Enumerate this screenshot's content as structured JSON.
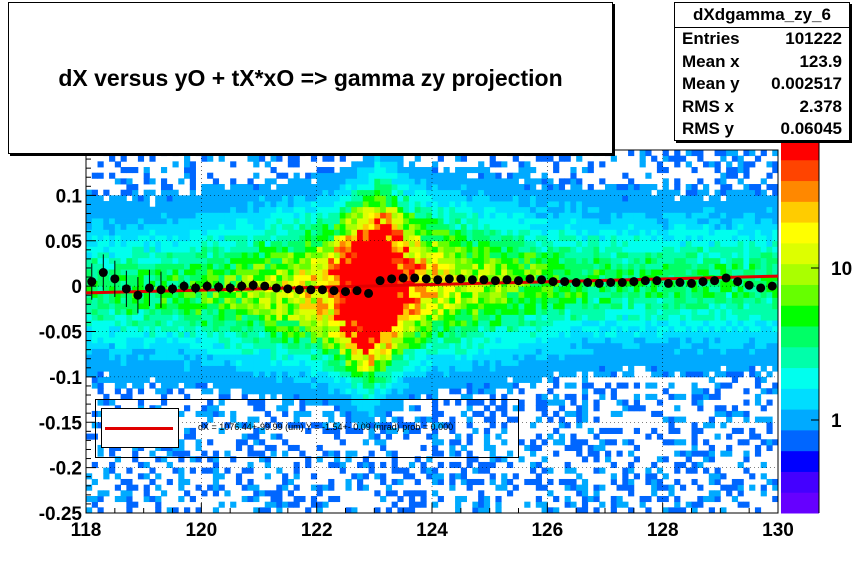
{
  "title": "dX  versus  yO + tX*xO =>  gamma zy projection",
  "stats": {
    "name": "dXdgamma_zy_6",
    "rows": [
      {
        "label": "Entries",
        "value": "101222"
      },
      {
        "label": "Mean x",
        "value": "123.9"
      },
      {
        "label": "Mean y",
        "value": "0.002517"
      },
      {
        "label": "RMS x",
        "value": "2.378"
      },
      {
        "label": "RMS y",
        "value": "0.06045"
      }
    ]
  },
  "fit_text": "dX = 1076.44+-99.99 (um) Y = -1.54+- 0.09 (mrad) prob = 0.000",
  "colors": {
    "fit_line": "#e00000",
    "points": "#000000",
    "palette": [
      "#6600ff",
      "#4400ff",
      "#0000ff",
      "#0066ff",
      "#00aaff",
      "#00ddff",
      "#00ffee",
      "#00ffaa",
      "#00ff66",
      "#00ff00",
      "#66ff00",
      "#aaff00",
      "#ddff00",
      "#ffff00",
      "#ffcc00",
      "#ff8800",
      "#ff4400",
      "#ff0000"
    ]
  },
  "chart_data": {
    "type": "heatmap",
    "title": "dX  versus  yO + tX*xO =>  gamma zy projection",
    "xlabel": "",
    "ylabel": "",
    "xlim": [
      118,
      130
    ],
    "ylim": [
      -0.25,
      0.15
    ],
    "x_ticks": [
      "118",
      "120",
      "122",
      "124",
      "126",
      "128",
      "130"
    ],
    "y_ticks": [
      "0.1",
      "0.05",
      "0",
      "-0.05",
      "-0.1",
      "-0.15",
      "-0.2",
      "-0.25"
    ],
    "z_scale": "log",
    "z_labels": [
      "1",
      "10"
    ],
    "grid": true,
    "profile_points": {
      "x": [
        118.1,
        118.3,
        118.5,
        118.7,
        118.9,
        119.1,
        119.3,
        119.5,
        119.7,
        119.9,
        120.1,
        120.3,
        120.5,
        120.7,
        120.9,
        121.1,
        121.3,
        121.5,
        121.7,
        121.9,
        122.1,
        122.3,
        122.5,
        122.7,
        122.9,
        123.1,
        123.3,
        123.5,
        123.7,
        123.9,
        124.1,
        124.3,
        124.5,
        124.7,
        124.9,
        125.1,
        125.3,
        125.5,
        125.7,
        125.9,
        126.1,
        126.3,
        126.5,
        126.7,
        126.9,
        127.1,
        127.3,
        127.5,
        127.7,
        127.9,
        128.1,
        128.3,
        128.5,
        128.7,
        128.9,
        129.1,
        129.3,
        129.5,
        129.7,
        129.9
      ],
      "y": [
        0.005,
        0.015,
        0.008,
        -0.003,
        -0.01,
        -0.002,
        -0.004,
        -0.003,
        0.0,
        -0.002,
        0.0,
        -0.001,
        -0.002,
        0.0,
        0.001,
        0.0,
        -0.002,
        -0.003,
        -0.004,
        -0.004,
        -0.004,
        -0.005,
        -0.006,
        -0.005,
        -0.008,
        0.006,
        0.008,
        0.009,
        0.009,
        0.008,
        0.007,
        0.008,
        0.008,
        0.007,
        0.007,
        0.006,
        0.007,
        0.006,
        0.008,
        0.007,
        0.005,
        0.005,
        0.004,
        0.004,
        0.003,
        0.004,
        0.004,
        0.005,
        0.006,
        0.006,
        0.003,
        0.004,
        0.003,
        0.005,
        0.006,
        0.009,
        0.005,
        0.001,
        -0.002,
        0.0
      ]
    },
    "fit_line": {
      "x": [
        118,
        130
      ],
      "y": [
        -0.0075,
        0.011
      ]
    }
  }
}
